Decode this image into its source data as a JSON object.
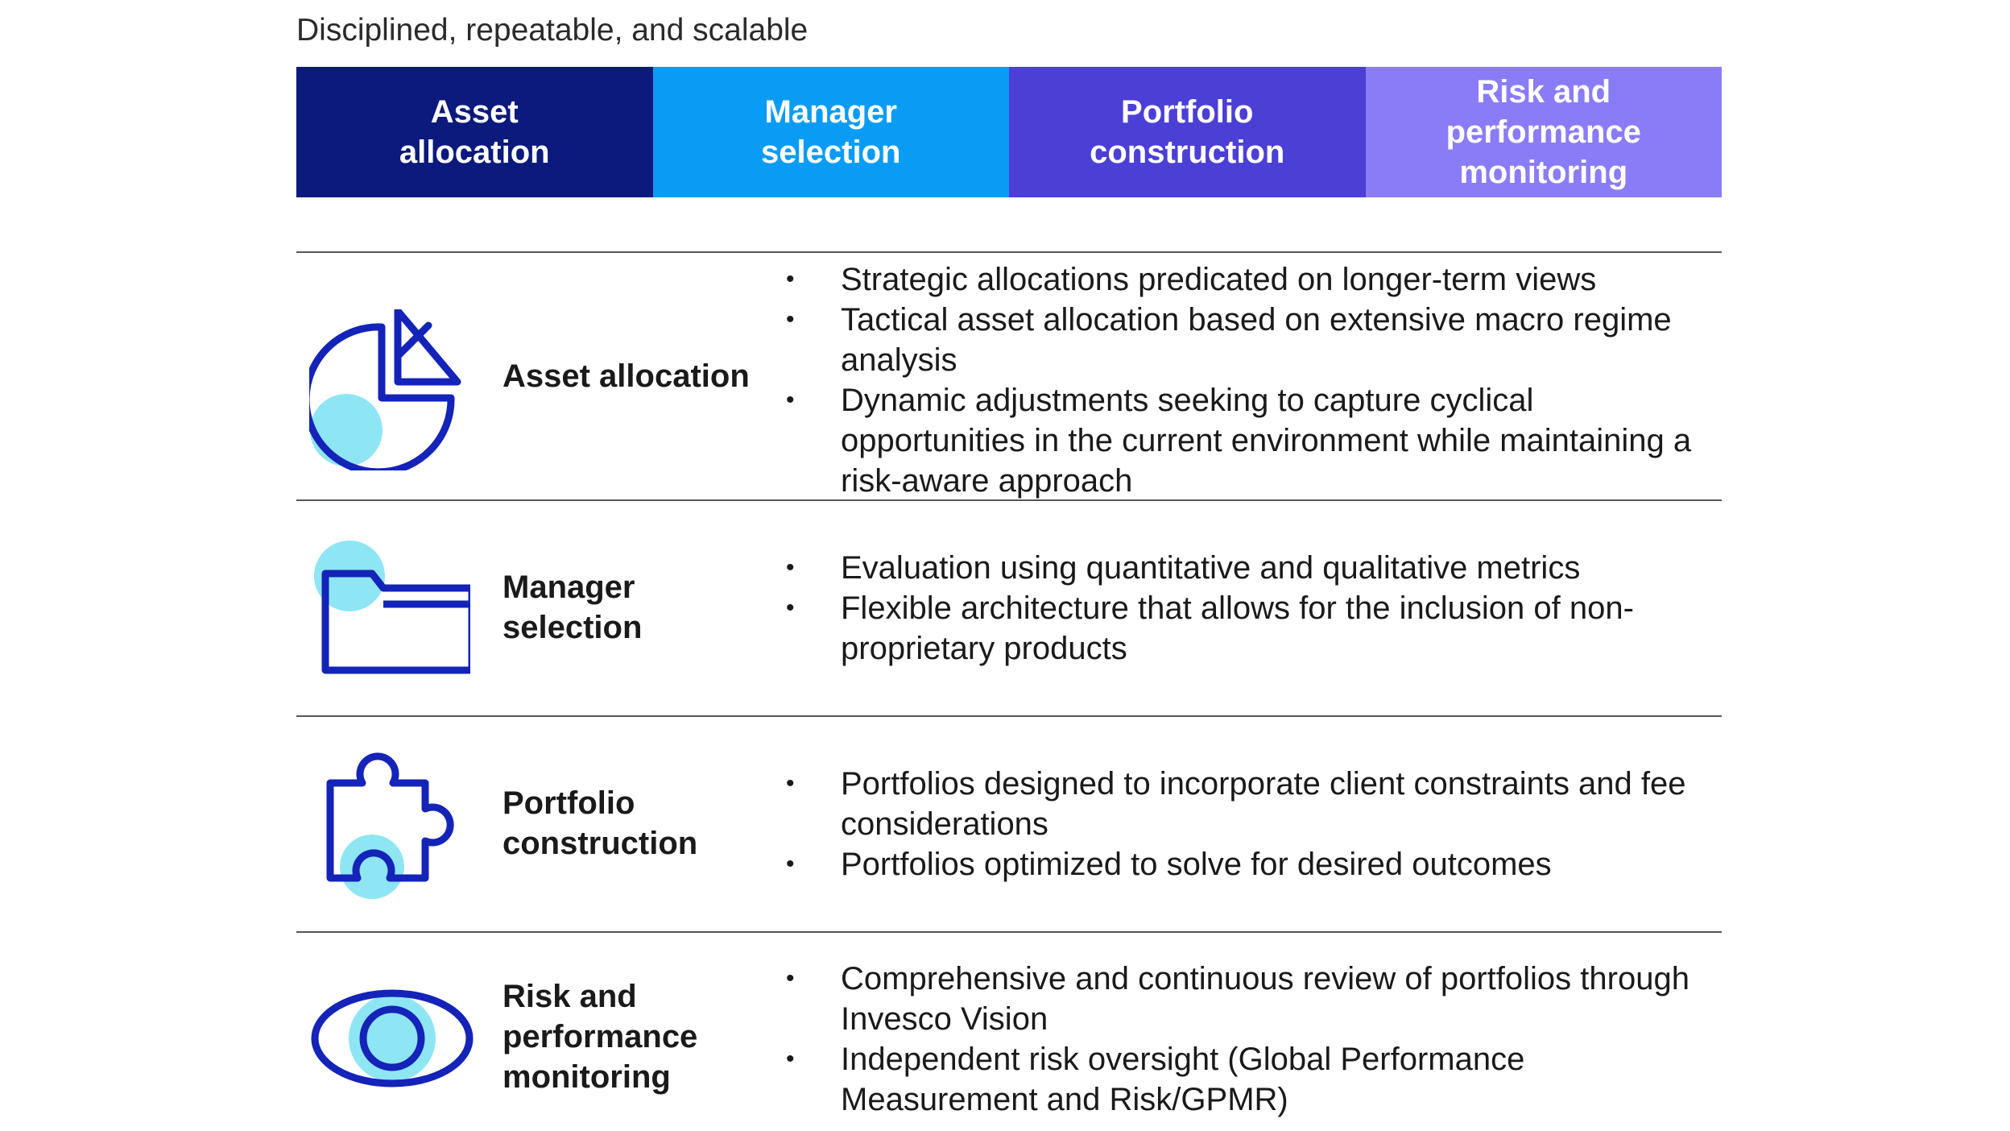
{
  "subtitle": "Disciplined, repeatable, and scalable",
  "colors": {
    "navy": "#0b1a7c",
    "sky": "#0a9cf5",
    "indigo": "#4c3fd6",
    "lavender": "#8a7cf7",
    "icon_stroke": "#1423b8",
    "icon_fill": "#8ee6f5"
  },
  "header": [
    {
      "lines": [
        "Asset",
        "allocation"
      ]
    },
    {
      "lines": [
        "Manager",
        "selection"
      ]
    },
    {
      "lines": [
        "Portfolio",
        "construction"
      ]
    },
    {
      "lines": [
        "Risk and",
        "performance",
        "monitoring"
      ]
    }
  ],
  "rows": [
    {
      "icon": "pie-chart-icon",
      "label_lines": [
        "Asset allocation"
      ],
      "bullets": [
        "Strategic allocations predicated on longer-term views",
        "Tactical asset allocation based on extensive macro regime analysis",
        "Dynamic adjustments seeking to capture cyclical opportunities in the current environment while maintaining a risk-aware approach"
      ]
    },
    {
      "icon": "folder-icon",
      "label_lines": [
        "Manager",
        "selection"
      ],
      "bullets": [
        "Evaluation using quantitative and qualitative metrics",
        "Flexible architecture that allows for the inclusion of non-proprietary products"
      ]
    },
    {
      "icon": "puzzle-piece-icon",
      "label_lines": [
        "Portfolio",
        "construction"
      ],
      "bullets": [
        "Portfolios designed to incorporate client constraints and fee considerations",
        "Portfolios optimized to solve for desired outcomes"
      ]
    },
    {
      "icon": "eye-icon",
      "label_lines": [
        "Risk and",
        "performance",
        "monitoring"
      ],
      "bullets": [
        "Comprehensive and continuous review of portfolios through Invesco Vision",
        "Independent risk oversight (Global Performance Measurement and Risk/GPMR)"
      ]
    }
  ]
}
